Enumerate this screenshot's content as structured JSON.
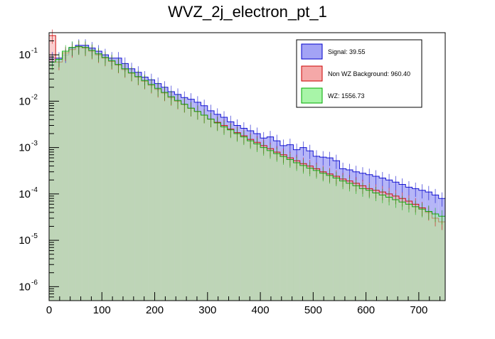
{
  "chart_data": {
    "type": "histogram",
    "title": "WVZ_2j_electron_pt_1",
    "xlabel": "",
    "ylabel": "",
    "xlim": [
      0,
      750
    ],
    "ylim": [
      5e-07,
      0.3
    ],
    "yscale": "log",
    "grid": false,
    "legend_position": "top-right",
    "bin_width": 12.5,
    "x_ticks": [
      0,
      100,
      200,
      300,
      400,
      500,
      600,
      700
    ],
    "x_tick_labels": [
      "0",
      "100",
      "200",
      "300",
      "400",
      "500",
      "600",
      "700"
    ],
    "y_ticks": [
      1e-06,
      1e-05,
      0.0001,
      0.001,
      0.01,
      0.1
    ],
    "y_tick_labels": [
      {
        "base": "10",
        "exp": "-6"
      },
      {
        "base": "10",
        "exp": "-5"
      },
      {
        "base": "10",
        "exp": "-4"
      },
      {
        "base": "10",
        "exp": "-3"
      },
      {
        "base": "10",
        "exp": "-2"
      },
      {
        "base": "10",
        "exp": "-1"
      }
    ],
    "series": [
      {
        "name": "Signal: 39.55",
        "color": "#a3a3f5",
        "edge": "#0000cc",
        "values": [
          0.085,
          0.085,
          0.1,
          0.14,
          0.16,
          0.16,
          0.14,
          0.12,
          0.1,
          0.085,
          0.085,
          0.065,
          0.05,
          0.042,
          0.033,
          0.029,
          0.024,
          0.02,
          0.016,
          0.014,
          0.012,
          0.011,
          0.0095,
          0.008,
          0.0062,
          0.0052,
          0.0045,
          0.0036,
          0.003,
          0.0026,
          0.0023,
          0.002,
          0.0016,
          0.0017,
          0.0014,
          0.0011,
          0.00115,
          0.0009,
          0.001,
          0.00085,
          0.00065,
          0.00062,
          0.0006,
          0.00052,
          0.00035,
          0.00033,
          0.0003,
          0.00028,
          0.00026,
          0.00024,
          0.00022,
          0.0002,
          0.00018,
          0.00016,
          0.00014,
          0.00013,
          0.00012,
          0.00011,
          9.5e-05,
          8e-05
        ]
      },
      {
        "name": "Non WZ Background: 960.40",
        "color": "#f5a8a8",
        "edge": "#cc0000",
        "values": [
          0.26,
          0.07,
          0.11,
          0.13,
          0.15,
          0.14,
          0.12,
          0.1,
          0.085,
          0.072,
          0.06,
          0.048,
          0.04,
          0.033,
          0.027,
          0.022,
          0.018,
          0.015,
          0.012,
          0.01,
          0.0085,
          0.007,
          0.006,
          0.005,
          0.0041,
          0.0035,
          0.003,
          0.0025,
          0.0021,
          0.0018,
          0.0015,
          0.0013,
          0.0011,
          0.00095,
          0.0008,
          0.0007,
          0.0006,
          0.00052,
          0.00045,
          0.0004,
          0.00035,
          0.0003,
          0.00027,
          0.00024,
          0.00021,
          0.00019,
          0.00017,
          0.00015,
          0.00013,
          0.00012,
          0.00011,
          0.0001,
          9e-05,
          8e-05,
          7e-05,
          6e-05,
          5e-05,
          4e-05,
          3e-05,
          2.5e-05
        ]
      },
      {
        "name": "WZ: 1556.73",
        "color": "#a8f5a8",
        "edge": "#00aa00",
        "values": [
          0.07,
          0.08,
          0.12,
          0.145,
          0.15,
          0.145,
          0.125,
          0.105,
          0.088,
          0.075,
          0.062,
          0.05,
          0.041,
          0.034,
          0.028,
          0.023,
          0.019,
          0.0155,
          0.0125,
          0.0104,
          0.0086,
          0.0071,
          0.006,
          0.005,
          0.0041,
          0.0034,
          0.0028,
          0.0024,
          0.002,
          0.0017,
          0.0014,
          0.0012,
          0.001,
          0.00086,
          0.00074,
          0.00064,
          0.00055,
          0.00047,
          0.00041,
          0.00036,
          0.00032,
          0.00028,
          0.00025,
          0.00022,
          0.00019,
          0.00017,
          0.00015,
          0.00013,
          0.00012,
          0.000105,
          9.5e-05,
          8.5e-05,
          7.5e-05,
          6.7e-05,
          6e-05,
          5.3e-05,
          4.7e-05,
          4.2e-05,
          3.7e-05,
          3.3e-05
        ]
      }
    ]
  }
}
